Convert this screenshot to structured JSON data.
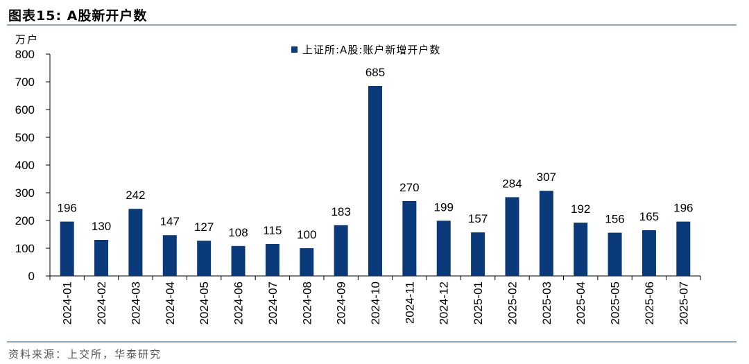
{
  "figure": {
    "title": "图表15:   A股新开户数",
    "source": "资料来源：上交所，华泰研究"
  },
  "colors": {
    "bar": "#0a3a7a",
    "rule": "#8aa6c1"
  },
  "chart_data": {
    "type": "bar",
    "title": "",
    "xlabel": "",
    "ylabel": "万户",
    "ylim": [
      0,
      800
    ],
    "yticks": [
      0,
      100,
      200,
      300,
      400,
      500,
      600,
      700,
      800
    ],
    "grid": false,
    "legend_position": "top-center",
    "categories": [
      "2024-01",
      "2024-02",
      "2024-03",
      "2024-04",
      "2024-05",
      "2024-06",
      "2024-07",
      "2024-08",
      "2024-09",
      "2024-10",
      "2024-11",
      "2024-12",
      "2025-01",
      "2025-02",
      "2025-03",
      "2025-04",
      "2025-05",
      "2025-06",
      "2025-07"
    ],
    "series": [
      {
        "name": "上证所:A股:账户新增开户数",
        "values": [
          196,
          130,
          242,
          147,
          127,
          108,
          115,
          100,
          183,
          685,
          270,
          199,
          157,
          284,
          307,
          192,
          156,
          165,
          196
        ]
      }
    ]
  }
}
